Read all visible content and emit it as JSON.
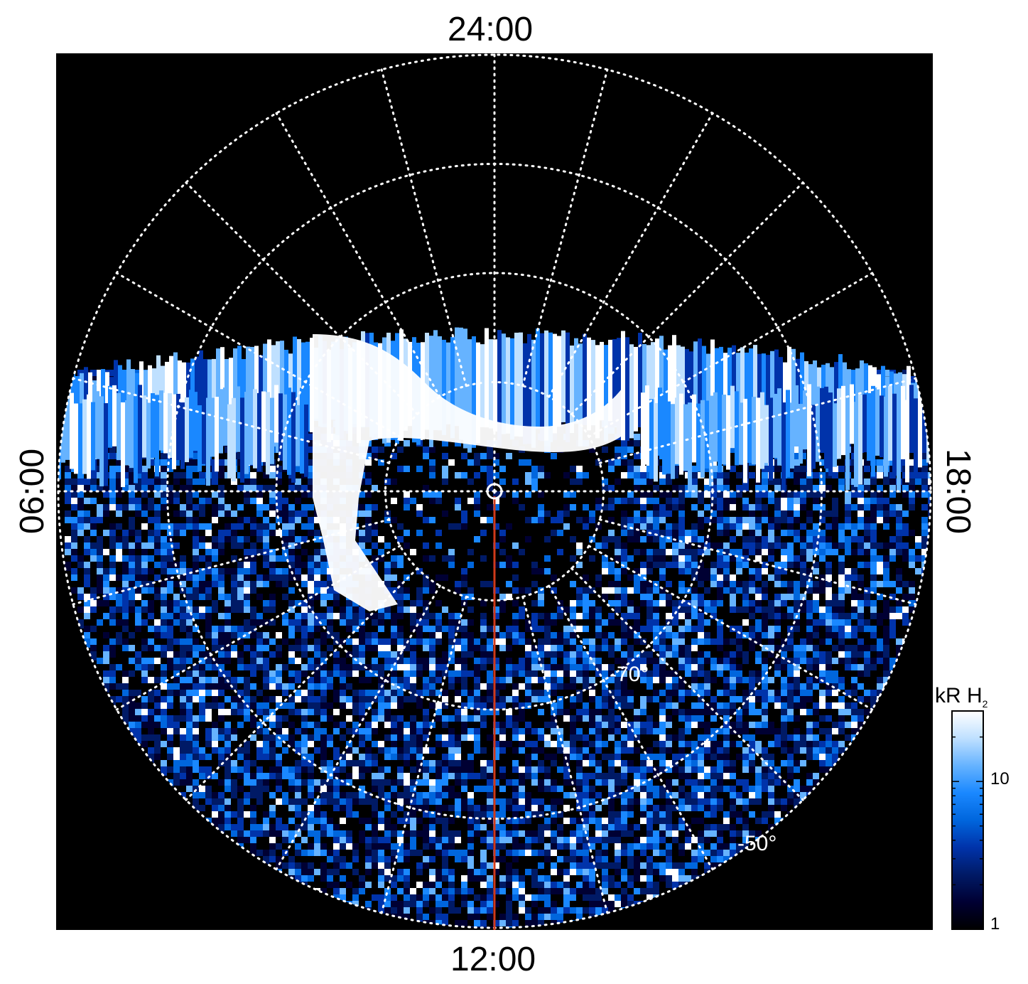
{
  "chart_data": {
    "type": "heatmap",
    "title": "",
    "projection": "polar (south pole, local time)",
    "local_time_labels": {
      "top": "24:00",
      "bottom": "12:00",
      "left": "06:00",
      "right": "18:00"
    },
    "latitude_labels": [
      "-70°",
      "-50°"
    ],
    "colorbar": {
      "title": "kR H",
      "title_subscript": "2",
      "scale": "log",
      "range": [
        1,
        30
      ],
      "ticks": [
        {
          "value": 1,
          "label": "1"
        },
        {
          "value": 10,
          "label": "10"
        }
      ],
      "colormap": [
        "#000000",
        "#000033",
        "#001a66",
        "#0033aa",
        "#0066dd",
        "#1a88ff",
        "#66b3ff",
        "#bfe0ff",
        "#ffffff"
      ]
    },
    "grid": "dotted white, 10° latitude circles and 30° local-time meridians",
    "overlays": [
      "red line from pole toward 12:00",
      "white circle marking pole"
    ],
    "colors": {
      "background": "#000000",
      "grid": "#ffffff",
      "marker_line": "#d03a1a"
    }
  }
}
